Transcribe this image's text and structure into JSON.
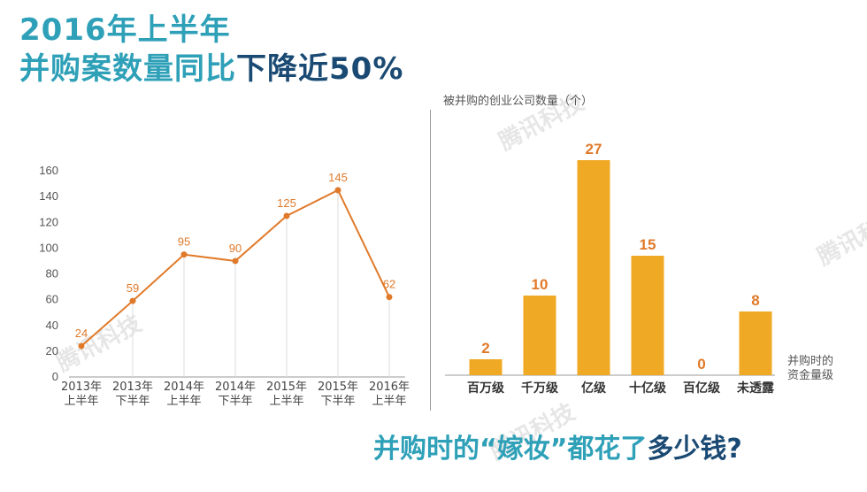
{
  "header": {
    "line1": "2016年上半年",
    "line2_a": "并购案数量同比",
    "line2_b": "下降近50%"
  },
  "footer": {
    "part_a": "并购时的“嫁妆”都花了",
    "part_b": "多少钱?"
  },
  "watermark": "腾讯科技",
  "colors": {
    "line": "#e07a2a",
    "bar": "#f0a924",
    "title": "#2ea0b8",
    "title_dark": "#1a4a73"
  },
  "chart_data": [
    {
      "type": "line",
      "categories": [
        "2013年上半年",
        "2013年下半年",
        "2014年上半年",
        "2014年下半年",
        "2015年上半年",
        "2015年下半年",
        "2016年上半年"
      ],
      "category_lines": [
        [
          "2013年",
          "上半年"
        ],
        [
          "2013年",
          "下半年"
        ],
        [
          "2014年",
          "上半年"
        ],
        [
          "2014年",
          "下半年"
        ],
        [
          "2015年",
          "上半年"
        ],
        [
          "2015年",
          "下半年"
        ],
        [
          "2016年",
          "上半年"
        ]
      ],
      "values": [
        24,
        59,
        95,
        90,
        125,
        145,
        62
      ],
      "ylim": [
        0,
        160
      ],
      "yticks": [
        0,
        20,
        40,
        60,
        80,
        100,
        120,
        140,
        160
      ],
      "title": "",
      "xlabel": "",
      "ylabel": "",
      "grid": "vertical drop lines",
      "legend": "none"
    },
    {
      "type": "bar",
      "categories": [
        "百万级",
        "千万级",
        "亿级",
        "十亿级",
        "百亿级",
        "未透露"
      ],
      "values": [
        2,
        10,
        27,
        15,
        0,
        8
      ],
      "ylim": [
        0,
        27
      ],
      "title": "",
      "ylabel": "被并购的创业公司数量（个）",
      "xlabel_lines": [
        "并购时的",
        "资金量级"
      ],
      "legend": "none"
    }
  ]
}
